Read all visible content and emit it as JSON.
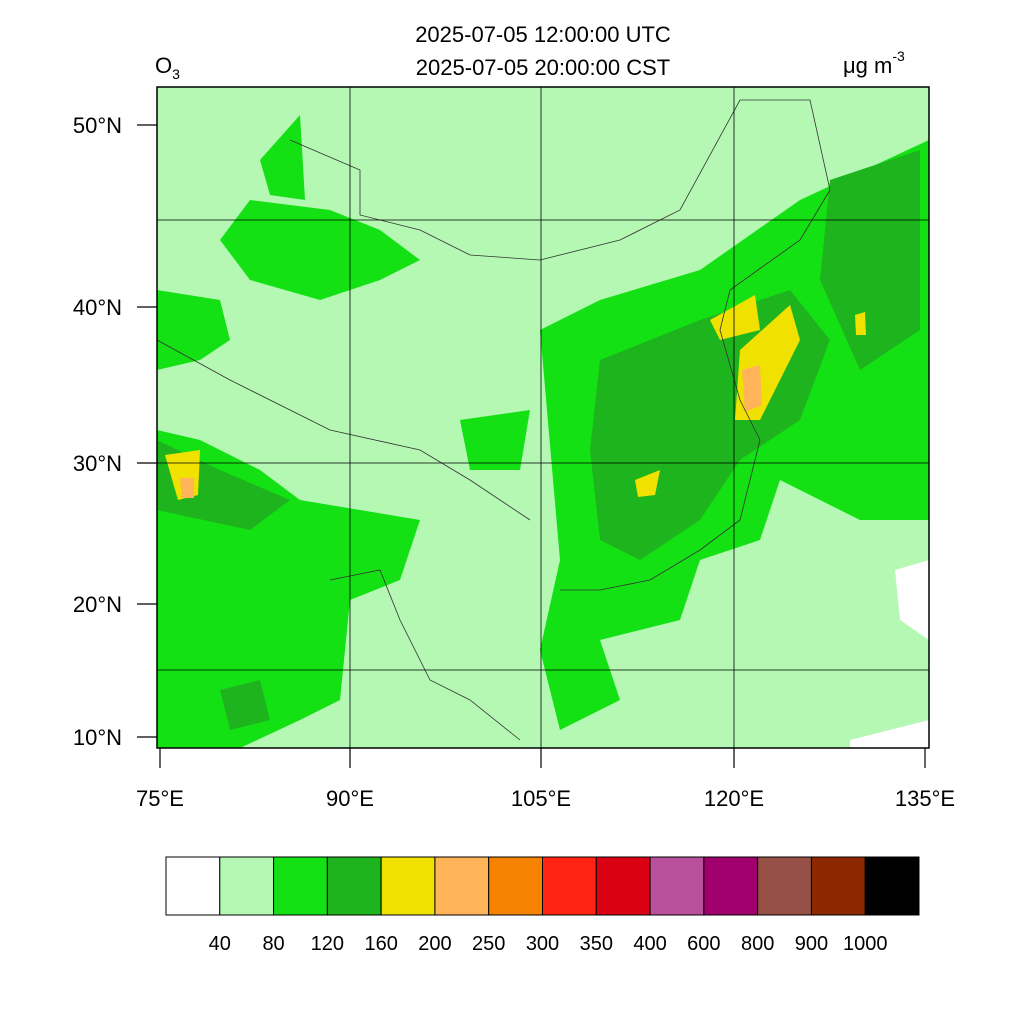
{
  "title": {
    "line1": "2025-07-05 12:00:00 UTC",
    "line2": "2025-07-05 20:00:00 CST"
  },
  "variable": {
    "symbol": "O",
    "subscript": "3"
  },
  "units": {
    "base": "μg m",
    "exponent": "-3"
  },
  "lat_labels": [
    "50°N",
    "40°N",
    "30°N",
    "20°N",
    "10°N"
  ],
  "lon_labels": [
    "75°E",
    "90°E",
    "105°E",
    "120°E",
    "135°E"
  ],
  "colorbar": {
    "colors": [
      "#ffffff",
      "#b4f8b4",
      "#14e114",
      "#1eb41e",
      "#f0e100",
      "#ffb45a",
      "#f58200",
      "#ff2314",
      "#dc0014",
      "#b9509b",
      "#a0006e",
      "#965046",
      "#8c2800",
      "#000000"
    ],
    "levels": [
      40,
      80,
      120,
      160,
      200,
      250,
      300,
      350,
      400,
      600,
      800,
      900,
      1000
    ]
  }
}
